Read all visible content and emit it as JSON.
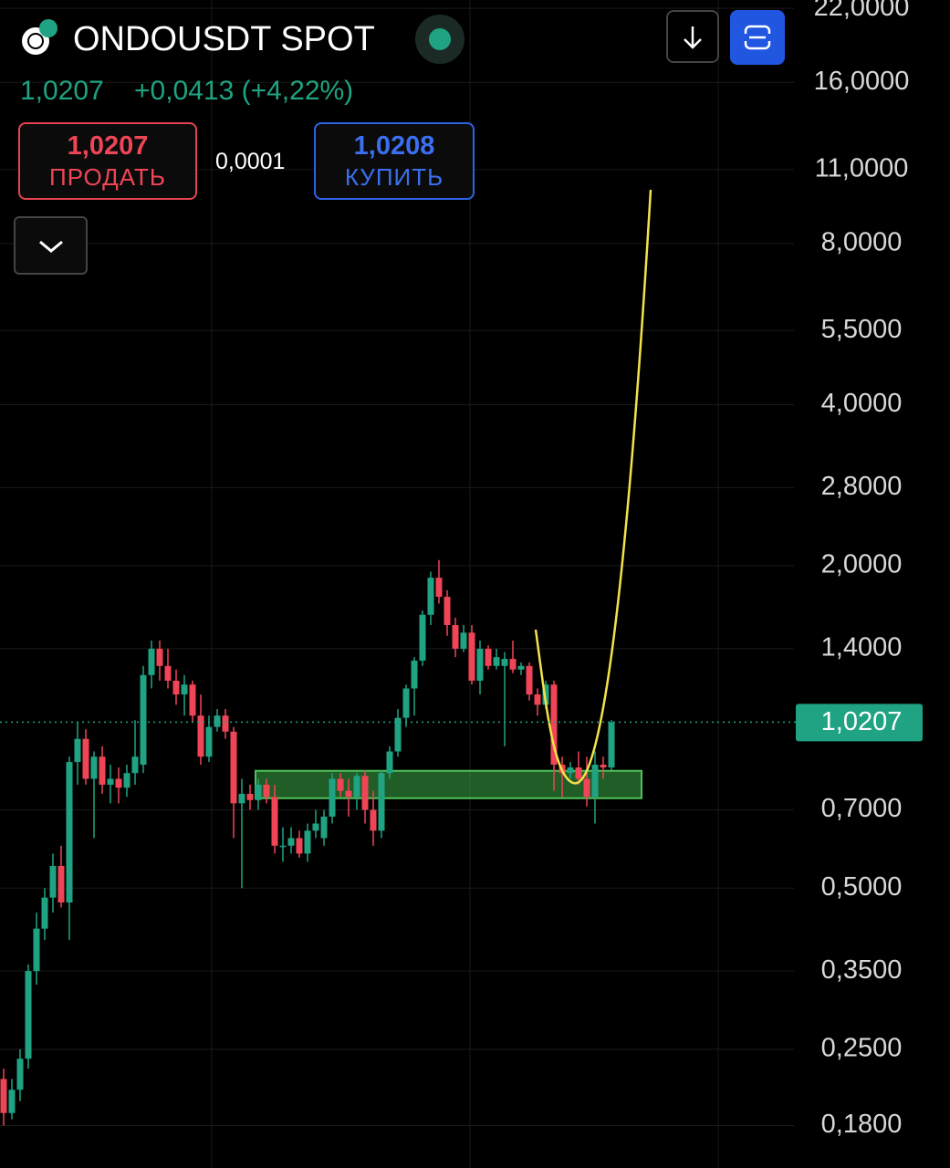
{
  "chart_data": {
    "type": "candlestick",
    "symbol": "ONDOUSDT SPOT",
    "last_price": "1,0207",
    "change": "+0,0413 (+4,22%)",
    "sell_price": "1,0207",
    "sell_label": "ПРОДАТЬ",
    "spread": "0,0001",
    "buy_price": "1,0208",
    "buy_label": "КУПИТЬ",
    "log_scale": true,
    "grid": true,
    "up_color": "#1fa383",
    "down_color": "#ef4556",
    "ylim": [
      0.15,
      22.8
    ],
    "yticks": [
      {
        "value": 22,
        "label": "22,0000"
      },
      {
        "value": 16,
        "label": "16,0000"
      },
      {
        "value": 11,
        "label": "11,0000"
      },
      {
        "value": 8,
        "label": "8,0000"
      },
      {
        "value": 5.5,
        "label": "5,5000"
      },
      {
        "value": 4,
        "label": "4,0000"
      },
      {
        "value": 2.8,
        "label": "2,8000"
      },
      {
        "value": 2,
        "label": "2,0000"
      },
      {
        "value": 1.4,
        "label": "1,4000"
      },
      {
        "value": 0.7,
        "label": "0,7000"
      },
      {
        "value": 0.5,
        "label": "0,5000"
      },
      {
        "value": 0.35,
        "label": "0,3500"
      },
      {
        "value": 0.25,
        "label": "0,2500"
      },
      {
        "value": 0.18,
        "label": "0,1800"
      }
    ],
    "price_line": {
      "value": 1.0207,
      "label": "1,0207"
    },
    "zone": {
      "low": 0.736,
      "high": 0.828
    },
    "open": [
      0.22,
      0.19,
      0.21,
      0.24,
      0.35,
      0.42,
      0.48,
      0.55,
      0.47,
      0.86,
      0.95,
      0.8,
      0.88,
      0.78,
      0.8,
      0.77,
      0.82,
      0.85,
      1.25,
      1.4,
      1.3,
      1.22,
      1.15,
      1.2,
      1.05,
      0.88,
      1.0,
      1.05,
      0.98,
      0.72,
      0.75,
      0.73,
      0.78,
      0.74,
      0.6,
      0.6,
      0.62,
      0.58,
      0.64,
      0.62,
      0.68,
      0.8,
      0.76,
      0.74,
      0.81,
      0.7,
      0.64,
      0.82,
      0.9,
      1.04,
      1.18,
      1.33,
      1.62,
      1.9,
      1.75,
      1.55,
      1.4,
      1.5,
      1.22,
      1.4,
      1.3,
      1.3,
      1.34,
      1.28,
      1.3,
      1.15,
      1.1,
      1.2,
      0.85,
      0.82,
      0.84,
      0.8,
      0.74,
      0.85,
      0.84
    ],
    "high": [
      0.23,
      0.22,
      0.25,
      0.36,
      0.45,
      0.5,
      0.58,
      0.6,
      0.88,
      1.02,
      0.99,
      0.9,
      0.92,
      0.85,
      0.84,
      0.85,
      1.03,
      1.3,
      1.45,
      1.45,
      1.4,
      1.28,
      1.25,
      1.22,
      1.15,
      1.05,
      1.08,
      1.08,
      1.0,
      0.8,
      0.78,
      0.8,
      0.8,
      0.78,
      0.65,
      0.65,
      0.64,
      0.66,
      0.7,
      0.7,
      0.82,
      0.82,
      0.8,
      0.82,
      0.83,
      0.76,
      0.83,
      0.92,
      1.08,
      1.2,
      1.35,
      1.65,
      1.95,
      2.05,
      1.8,
      1.6,
      1.55,
      1.55,
      1.45,
      1.42,
      1.4,
      1.38,
      1.45,
      1.32,
      1.32,
      1.18,
      1.22,
      1.22,
      0.88,
      0.86,
      0.9,
      0.88,
      0.9,
      0.88,
      1.03
    ],
    "low": [
      0.18,
      0.185,
      0.2,
      0.23,
      0.33,
      0.4,
      0.45,
      0.46,
      0.4,
      0.78,
      0.78,
      0.62,
      0.75,
      0.72,
      0.72,
      0.74,
      0.78,
      0.82,
      1.18,
      1.22,
      1.18,
      1.1,
      1.05,
      1.02,
      0.85,
      0.86,
      0.98,
      0.95,
      0.62,
      0.5,
      0.7,
      0.7,
      0.72,
      0.58,
      0.56,
      0.58,
      0.57,
      0.56,
      0.62,
      0.6,
      0.66,
      0.74,
      0.68,
      0.7,
      0.66,
      0.6,
      0.62,
      0.8,
      0.88,
      1.0,
      1.05,
      1.3,
      1.55,
      1.7,
      1.48,
      1.35,
      1.38,
      1.2,
      1.15,
      1.28,
      1.28,
      0.92,
      1.26,
      1.25,
      1.12,
      1.05,
      1.08,
      0.76,
      0.74,
      0.8,
      0.78,
      0.71,
      0.66,
      0.8,
      0.83
    ],
    "close": [
      0.19,
      0.21,
      0.24,
      0.35,
      0.42,
      0.48,
      0.55,
      0.47,
      0.86,
      0.95,
      0.8,
      0.88,
      0.78,
      0.8,
      0.77,
      0.82,
      0.88,
      1.25,
      1.4,
      1.3,
      1.22,
      1.15,
      1.2,
      1.05,
      0.88,
      1.0,
      1.05,
      0.98,
      0.72,
      0.75,
      0.73,
      0.78,
      0.74,
      0.6,
      0.6,
      0.62,
      0.58,
      0.64,
      0.66,
      0.68,
      0.8,
      0.76,
      0.74,
      0.81,
      0.7,
      0.64,
      0.82,
      0.9,
      1.04,
      1.18,
      1.33,
      1.62,
      1.9,
      1.75,
      1.55,
      1.4,
      1.5,
      1.22,
      1.4,
      1.3,
      1.35,
      1.34,
      1.28,
      1.3,
      1.15,
      1.1,
      1.2,
      0.85,
      0.82,
      0.84,
      0.8,
      0.74,
      0.85,
      0.84,
      1.0207
    ]
  }
}
